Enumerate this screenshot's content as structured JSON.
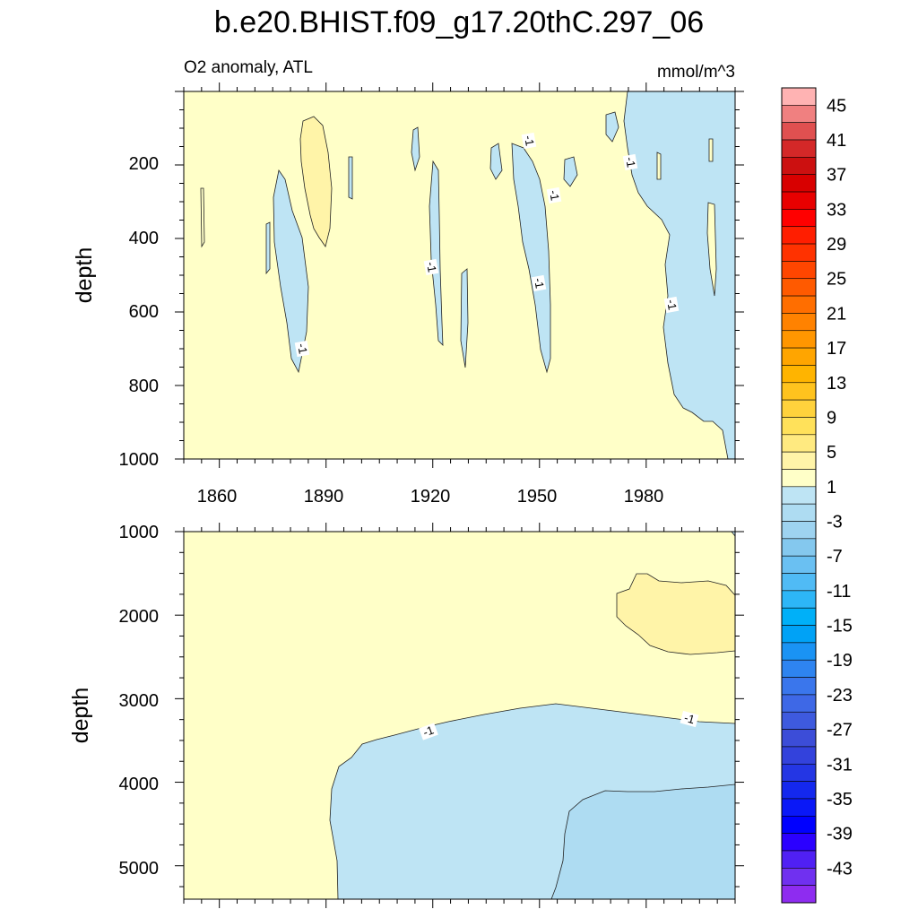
{
  "chart_data": {
    "type": "contour",
    "title": "b.e20.BHIST.f09_g17.20thC.297_06",
    "subtitle_left": "O2 anomaly, ATL",
    "subtitle_right": "mmol/m^3",
    "xlabel": "",
    "ylabel": "depth",
    "x_ticks": [
      "1860",
      "1890",
      "1920",
      "1950",
      "1980"
    ],
    "xlim": [
      1850,
      2005
    ],
    "panels": [
      {
        "name": "upper",
        "ylabel": "depth",
        "ylim": [
          0,
          1000
        ],
        "y_ticks": [
          "200",
          "400",
          "600",
          "800",
          "1000"
        ],
        "background_level": "0 to 2",
        "features": [
          {
            "level": "-1 to -2",
            "description": "negative anomaly tongue",
            "years": [
              1877,
              1886
            ],
            "depth": [
              210,
              760
            ]
          },
          {
            "level": "-1 to -2",
            "description": "negative anomaly tongue",
            "years": [
              1919,
              1923
            ],
            "depth": [
              180,
              690
            ]
          },
          {
            "level": "-1 to -2",
            "description": "negative anomaly tongue",
            "years": [
              1946,
              1955
            ],
            "depth": [
              150,
              780
            ]
          },
          {
            "level": "-1 to -2",
            "description": "deep negative region",
            "years": [
              1973,
              2005
            ],
            "depth": [
              0,
              1000
            ]
          },
          {
            "level": "2 to 4",
            "description": "positive anomaly patch",
            "years": [
              1883,
              1892
            ],
            "depth": [
              80,
              430
            ]
          }
        ],
        "contour_labels": [
          "-1",
          "-1",
          "-1",
          "-1",
          "-1",
          "-1",
          "-1"
        ]
      },
      {
        "name": "lower",
        "ylabel": "depth",
        "ylim": [
          1000,
          5400
        ],
        "y_ticks": [
          "1000",
          "2000",
          "3000",
          "4000",
          "5000"
        ],
        "background_level": "0 to 2",
        "features": [
          {
            "level": "-1 to -2",
            "description": "deep negative anomaly",
            "years": [
              1891,
              2005
            ],
            "depth": [
              3000,
              5400
            ]
          },
          {
            "level": "-2 to -4",
            "description": "deeper negative core",
            "years": [
              1954,
              2005
            ],
            "depth": [
              4000,
              5400
            ]
          },
          {
            "level": "2 to 4",
            "description": "positive anomaly lens",
            "years": [
              1972,
              2005
            ],
            "depth": [
              1500,
              2450
            ]
          }
        ],
        "contour_labels": [
          "-1",
          "-1"
        ]
      }
    ],
    "colorbar": {
      "labels": [
        "45",
        "41",
        "37",
        "33",
        "29",
        "25",
        "21",
        "17",
        "13",
        "9",
        "5",
        "1",
        "-3",
        "-7",
        "-11",
        "-15",
        "-19",
        "-23",
        "-27",
        "-31",
        "-35",
        "-39",
        "-43"
      ],
      "colors": [
        "#FFB3B3",
        "#F08080",
        "#E05050",
        "#D42828",
        "#CC1010",
        "#D80000",
        "#E80000",
        "#FF0000",
        "#FF1E00",
        "#FF3200",
        "#FF4600",
        "#FF5A00",
        "#FF6E00",
        "#FF8200",
        "#FF9600",
        "#FFA500",
        "#FFB400",
        "#FFC31E",
        "#FFD23C",
        "#FFE15A",
        "#FFEA80",
        "#FFF4A8",
        "#FFFFC8",
        "#BEE4F4",
        "#AEDCF2",
        "#9ED3F0",
        "#84C8EE",
        "#6AC0F2",
        "#50BBF5",
        "#2DB6F7",
        "#00B0F8",
        "#00A2F6",
        "#1A93F4",
        "#2E84F0",
        "#3A76EC",
        "#3E68E6",
        "#3E5ADE",
        "#3C4DD8",
        "#3342DC",
        "#2436E4",
        "#1428EE",
        "#0A18F7",
        "#0000FF",
        "#2B00FF",
        "#5020F4",
        "#7030F0",
        "#8E2CF0"
      ]
    }
  }
}
